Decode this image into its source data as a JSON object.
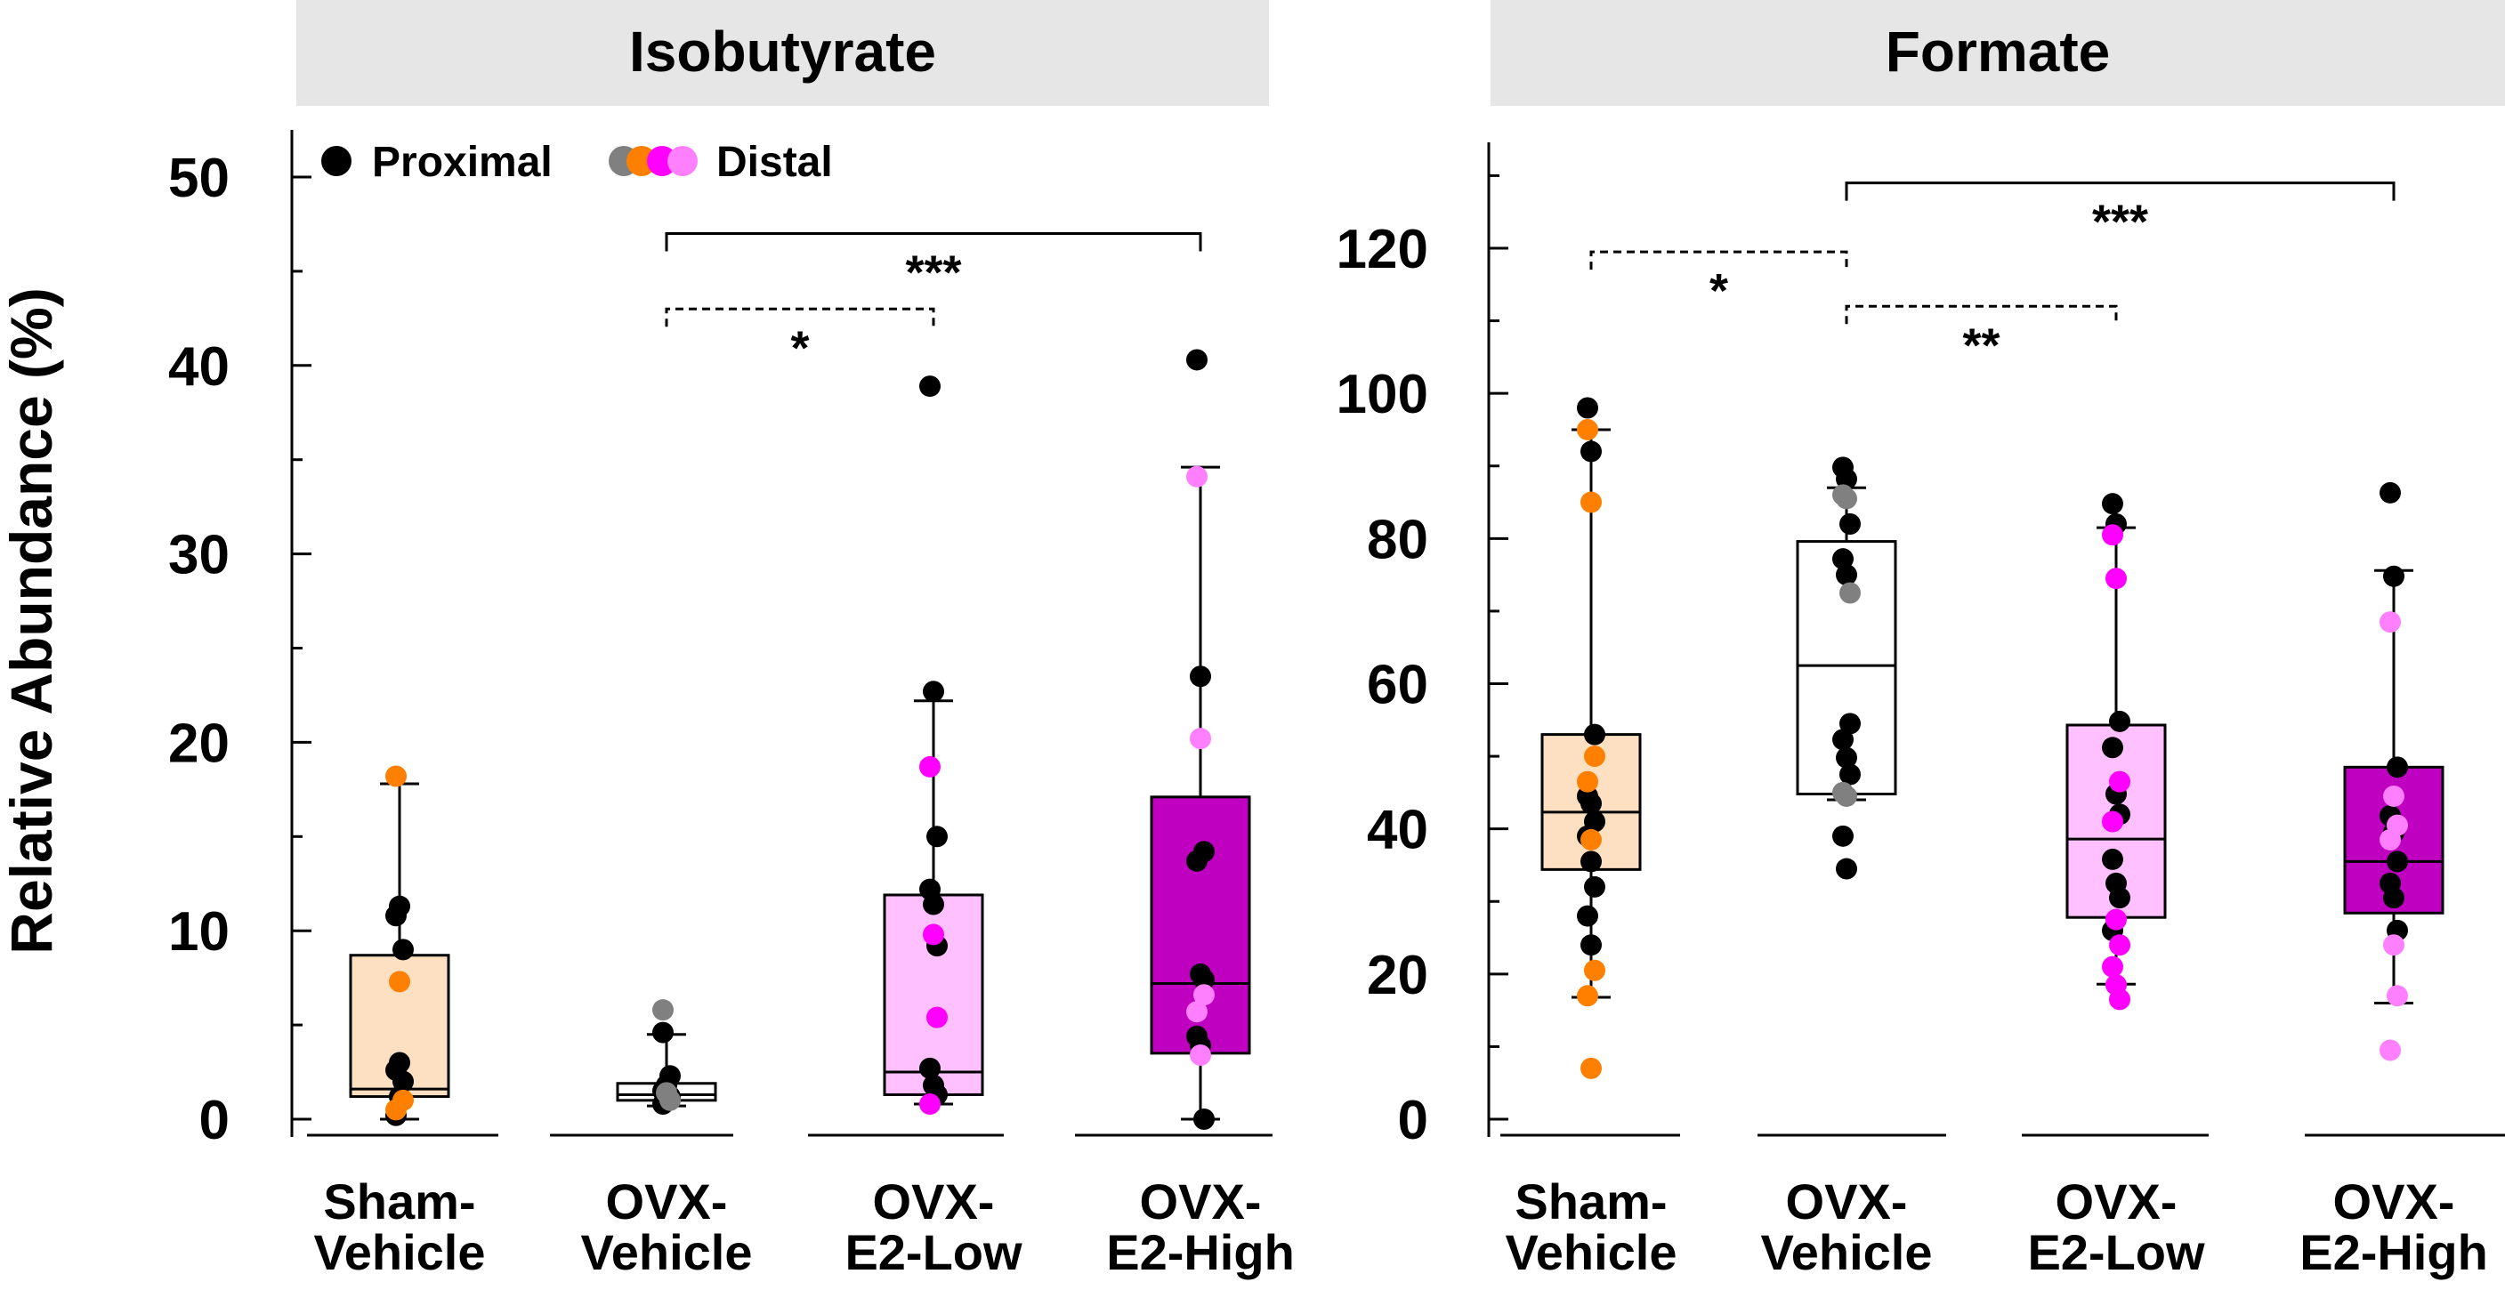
{
  "ylabel": "Relative Abundance (%)",
  "legend": {
    "proximal_label": "Proximal",
    "distal_label": "Distal",
    "proximal_color": "#000000",
    "distal_colors": [
      "#808080",
      "#ff8000",
      "#ff00ff",
      "#ff80ff"
    ]
  },
  "chart_data": [
    {
      "type": "box",
      "title": "Isobutyrate",
      "ylabel": "Relative Abundance (%)",
      "ylim": [
        0,
        50
      ],
      "yticks": [
        0,
        10,
        20,
        30,
        40,
        50
      ],
      "categories": [
        "Sham-\nVehicle",
        "OVX-\nVehicle",
        "OVX-\nE2-Low",
        "OVX-\nE2-High"
      ],
      "groups": [
        {
          "name": "Sham-Vehicle",
          "box_color": "#fde0c2",
          "distal_color": "#ff8000",
          "whisker_low": 0,
          "q1": 1.2,
          "median": 1.6,
          "q3": 8.7,
          "whisker_high": 17.8,
          "proximal": [
            0.2,
            1.2,
            2.0,
            2.6,
            3.0,
            9.0,
            10.8,
            11.3
          ],
          "distal": [
            18.2,
            7.3,
            1.0,
            0.5
          ]
        },
        {
          "name": "OVX-Vehicle",
          "box_color": "#ffffff",
          "distal_color": "#808080",
          "whisker_low": 0.7,
          "q1": 1.0,
          "median": 1.3,
          "q3": 1.9,
          "whisker_high": 4.5,
          "proximal": [
            0.8,
            1.0,
            1.2,
            1.5,
            1.8,
            2.3,
            4.6
          ],
          "distal": [
            5.8,
            1.4,
            1.0
          ]
        },
        {
          "name": "OVX-E2-Low",
          "box_color": "#ffc0ff",
          "distal_color": "#ff00ff",
          "whisker_low": 0.8,
          "q1": 1.3,
          "median": 2.5,
          "q3": 11.9,
          "whisker_high": 22.2,
          "proximal": [
            38.9,
            22.7,
            15.0,
            12.2,
            11.4,
            9.2,
            2.7,
            1.8,
            1.3
          ],
          "distal": [
            18.7,
            9.8,
            5.4,
            0.8
          ]
        },
        {
          "name": "OVX-E2-High",
          "box_color": "#c000c0",
          "distal_color": "#ff80ff",
          "whisker_low": 0,
          "q1": 3.5,
          "median": 7.2,
          "q3": 17.1,
          "whisker_high": 34.6,
          "proximal": [
            40.3,
            23.5,
            14.2,
            13.7,
            7.7,
            7.4,
            4.4,
            3.9,
            0
          ],
          "distal": [
            34.1,
            20.2,
            6.6,
            5.7,
            3.4
          ]
        }
      ],
      "comparisons": [
        {
          "from": "OVX-Vehicle",
          "to": "OVX-E2-Low",
          "label": "*",
          "style": "dashed",
          "y": 43
        },
        {
          "from": "OVX-Vehicle",
          "to": "OVX-E2-High",
          "label": "***",
          "style": "solid",
          "y": 47
        }
      ]
    },
    {
      "type": "box",
      "title": "Formate",
      "ylabel": "",
      "ylim": [
        0,
        130
      ],
      "yticks": [
        0,
        20,
        40,
        60,
        80,
        100,
        120
      ],
      "categories": [
        "Sham-\nVehicle",
        "OVX-\nVehicle",
        "OVX-\nE2-Low",
        "OVX-\nE2-High"
      ],
      "groups": [
        {
          "name": "Sham-Vehicle",
          "box_color": "#fde0c2",
          "distal_color": "#ff8000",
          "whisker_low": 16.8,
          "q1": 34.4,
          "median": 42.3,
          "q3": 53.0,
          "whisker_high": 95.0,
          "proximal": [
            98.0,
            92.0,
            53.0,
            44.5,
            43.5,
            41.0,
            39.0,
            35.5,
            32.0,
            28.0,
            24.0
          ],
          "distal": [
            95.0,
            85.0,
            50.0,
            46.5,
            38.5,
            20.5,
            17.0,
            7.0
          ]
        },
        {
          "name": "OVX-Vehicle",
          "box_color": "#ffffff",
          "distal_color": "#808080",
          "whisker_low": 44.0,
          "q1": 44.8,
          "median": 62.5,
          "q3": 79.6,
          "whisker_high": 87.0,
          "proximal": [
            89.8,
            88.2,
            82.0,
            77.2,
            75.0,
            54.5,
            52.3,
            49.8,
            47.5,
            39.0,
            34.5
          ],
          "distal": [
            86.0,
            85.5,
            72.5,
            45.0,
            44.5
          ]
        },
        {
          "name": "OVX-E2-Low",
          "box_color": "#ffc0ff",
          "distal_color": "#ff00ff",
          "whisker_low": 18.6,
          "q1": 27.8,
          "median": 38.6,
          "q3": 54.3,
          "whisker_high": 81.5,
          "proximal": [
            84.8,
            82.0,
            54.8,
            51.2,
            44.8,
            42.0,
            35.8,
            32.5,
            30.5,
            26.0
          ],
          "distal": [
            80.5,
            74.5,
            46.5,
            41.0,
            27.5,
            24.0,
            21.0,
            18.5,
            16.5
          ]
        },
        {
          "name": "OVX-E2-High",
          "box_color": "#c000c0",
          "distal_color": "#ff80ff",
          "whisker_low": 16.0,
          "q1": 28.4,
          "median": 35.5,
          "q3": 48.5,
          "whisker_high": 75.6,
          "proximal": [
            86.3,
            74.8,
            48.5,
            41.8,
            39.5,
            35.5,
            32.5,
            30.5,
            26.0
          ],
          "distal": [
            68.5,
            44.5,
            40.5,
            38.5,
            24.0,
            17.0,
            9.5
          ]
        }
      ],
      "comparisons": [
        {
          "from": "Sham-Vehicle",
          "to": "OVX-Vehicle",
          "label": "*",
          "style": "dashed",
          "y": 119.5
        },
        {
          "from": "OVX-Vehicle",
          "to": "OVX-E2-High",
          "label": "***",
          "style": "solid",
          "y": 129
        },
        {
          "from": "OVX-Vehicle",
          "to": "OVX-E2-Low",
          "label": "**",
          "style": "dashed",
          "y": 112
        }
      ]
    }
  ]
}
